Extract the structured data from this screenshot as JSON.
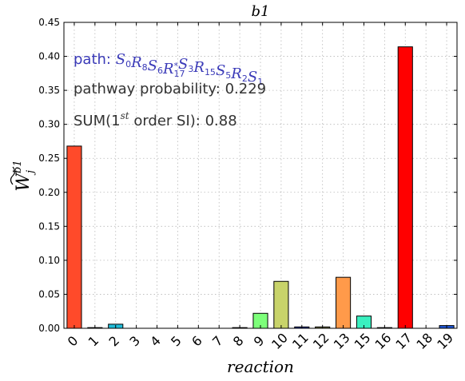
{
  "chart_data": {
    "type": "bar",
    "title": "b1",
    "xlabel": "reaction",
    "ylabel": "W̃_j^{b1}",
    "ylim": [
      0,
      0.45
    ],
    "yticks": [
      "0.00",
      "0.05",
      "0.10",
      "0.15",
      "0.20",
      "0.25",
      "0.30",
      "0.35",
      "0.40",
      "0.45"
    ],
    "categories": [
      "0",
      "1",
      "2",
      "3",
      "4",
      "5",
      "6",
      "7",
      "8",
      "9",
      "10",
      "11",
      "12",
      "13",
      "15",
      "16",
      "17",
      "18",
      "19"
    ],
    "values": [
      0.268,
      0.001,
      0.006,
      0.0,
      0.0,
      0.0,
      0.0,
      0.0,
      0.001,
      0.022,
      0.069,
      0.002,
      0.002,
      0.075,
      0.018,
      0.001,
      0.414,
      0.0,
      0.004
    ],
    "colors": [
      "#ff4a2a",
      "#1e1e7a",
      "#21bcd8",
      "#2a2a8a",
      "#2a2a8a",
      "#2a2a8a",
      "#2a2a8a",
      "#2a2a8a",
      "#6a2a3a",
      "#7dff7a",
      "#c8d36a",
      "#1c3aa8",
      "#7a7a4a",
      "#ff9a4a",
      "#3af0c0",
      "#3a3a8a",
      "#ff0000",
      "#2a2a8a",
      "#1e56d8"
    ],
    "grid": true,
    "annotations": {
      "path": "path: S0R8S6R17*S3R15S5R2S1",
      "pathway_probability": "pathway probability: 0.229",
      "sum_si": "SUM(1st order SI): 0.88"
    },
    "annotation_colors": {
      "path": "#3a3ab8",
      "text": "#333333"
    }
  }
}
